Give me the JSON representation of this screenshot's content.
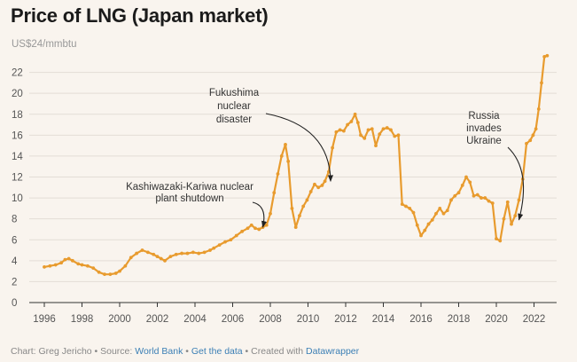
{
  "chart_data": {
    "type": "line",
    "title": "Price of LNG (Japan market)",
    "unit_label": "US$24/mmbtu",
    "xlim": [
      1995.2,
      2023.2
    ],
    "ylim": [
      0,
      24
    ],
    "y_ticks": [
      0,
      2,
      4,
      6,
      8,
      10,
      12,
      14,
      16,
      18,
      20,
      22
    ],
    "y_tick_labels": [
      "0",
      "2",
      "4",
      "6",
      "8",
      "10",
      "12",
      "14",
      "16",
      "18",
      "20",
      "22"
    ],
    "x_ticks": [
      1996,
      1998,
      2000,
      2002,
      2004,
      2006,
      2008,
      2010,
      2012,
      2014,
      2016,
      2018,
      2020,
      2022
    ],
    "x_tick_labels": [
      "1996",
      "1998",
      "2000",
      "2002",
      "2004",
      "2006",
      "2008",
      "2010",
      "2012",
      "2014",
      "2016",
      "2018",
      "2020",
      "2022"
    ],
    "grid": true,
    "line_color": "#e89b2e",
    "series": [
      {
        "x": [
          1996.0,
          1996.3,
          1996.6,
          1996.9,
          1997.1,
          1997.3,
          1997.5,
          1997.8,
          1998.0,
          1998.3,
          1998.6,
          1998.9,
          1999.2,
          1999.5,
          1999.8,
          2000.0,
          2000.3,
          2000.6,
          2000.9,
          2001.2,
          2001.5,
          2001.8,
          2002.0,
          2002.2,
          2002.4,
          2002.7,
          2003.0,
          2003.3,
          2003.6,
          2003.9,
          2004.2,
          2004.5,
          2004.8,
          2005.0,
          2005.3,
          2005.6,
          2005.9,
          2006.2,
          2006.5,
          2006.8,
          2007.0,
          2007.2,
          2007.4,
          2007.6,
          2007.8,
          2008.0,
          2008.2,
          2008.4,
          2008.6,
          2008.8,
          2008.95,
          2009.15,
          2009.35,
          2009.55,
          2009.75,
          2009.95,
          2010.15,
          2010.35,
          2010.55,
          2010.75,
          2010.9,
          2011.1,
          2011.3,
          2011.5,
          2011.7,
          2011.9,
          2012.1,
          2012.3,
          2012.5,
          2012.65,
          2012.8,
          2013.0,
          2013.2,
          2013.4,
          2013.6,
          2013.8,
          2014.0,
          2014.2,
          2014.4,
          2014.6,
          2014.8,
          2015.0,
          2015.2,
          2015.4,
          2015.6,
          2015.8,
          2016.0,
          2016.2,
          2016.4,
          2016.6,
          2016.8,
          2017.0,
          2017.2,
          2017.4,
          2017.6,
          2017.8,
          2018.0,
          2018.2,
          2018.4,
          2018.6,
          2018.8,
          2019.0,
          2019.2,
          2019.4,
          2019.6,
          2019.8,
          2020.0,
          2020.2,
          2020.4,
          2020.6,
          2020.8,
          2021.0,
          2021.2,
          2021.4,
          2021.6,
          2021.8,
          2021.95,
          2022.1,
          2022.25,
          2022.4,
          2022.55,
          2022.7
        ],
        "y": [
          3.4,
          3.5,
          3.6,
          3.8,
          4.1,
          4.2,
          4.0,
          3.7,
          3.6,
          3.5,
          3.3,
          2.9,
          2.7,
          2.7,
          2.8,
          3.0,
          3.5,
          4.3,
          4.7,
          5.0,
          4.8,
          4.6,
          4.4,
          4.2,
          4.0,
          4.4,
          4.6,
          4.7,
          4.7,
          4.8,
          4.7,
          4.8,
          5.0,
          5.2,
          5.5,
          5.8,
          6.0,
          6.4,
          6.8,
          7.1,
          7.4,
          7.1,
          7.0,
          7.2,
          7.4,
          8.5,
          10.5,
          12.3,
          14.0,
          15.1,
          13.5,
          9.0,
          7.2,
          8.3,
          9.2,
          9.8,
          10.6,
          11.3,
          11.0,
          11.2,
          11.6,
          12.5,
          14.8,
          16.3,
          16.5,
          16.4,
          17.0,
          17.3,
          18.0,
          17.2,
          16.0,
          15.7,
          16.5,
          16.6,
          15.0,
          16.1,
          16.6,
          16.7,
          16.5,
          15.9,
          16.0,
          9.4,
          9.2,
          9.0,
          8.6,
          7.4,
          6.4,
          6.9,
          7.5,
          7.9,
          8.5,
          9.0,
          8.5,
          8.8,
          9.8,
          10.2,
          10.5,
          11.2,
          12.0,
          11.5,
          10.2,
          10.3,
          10.0,
          10.0,
          9.7,
          9.5,
          6.1,
          5.9,
          8.0,
          9.6,
          7.5,
          8.3,
          9.8,
          11.8,
          15.2,
          15.5,
          16.0,
          16.6,
          18.5,
          21.0,
          23.5,
          23.6
        ]
      }
    ],
    "annotations": [
      {
        "lines": [
          "Kashiwazaki-Kariwa nuclear",
          "plant shutdown"
        ],
        "target": [
          2007.6,
          7.2
        ]
      },
      {
        "lines": [
          "Fukushima",
          "nuclear",
          "disaster"
        ],
        "target": [
          2011.2,
          11.6
        ]
      },
      {
        "lines": [
          "Russia",
          "invades",
          "Ukraine"
        ],
        "target": [
          2021.2,
          7.9
        ]
      }
    ]
  },
  "footer": {
    "prefix": "Chart: Greg Jericho • Source: ",
    "source_link": "World Bank",
    "sep": " • ",
    "data_link": "Get the data",
    "middle": " • Created with ",
    "tool_link": "Datawrapper"
  }
}
